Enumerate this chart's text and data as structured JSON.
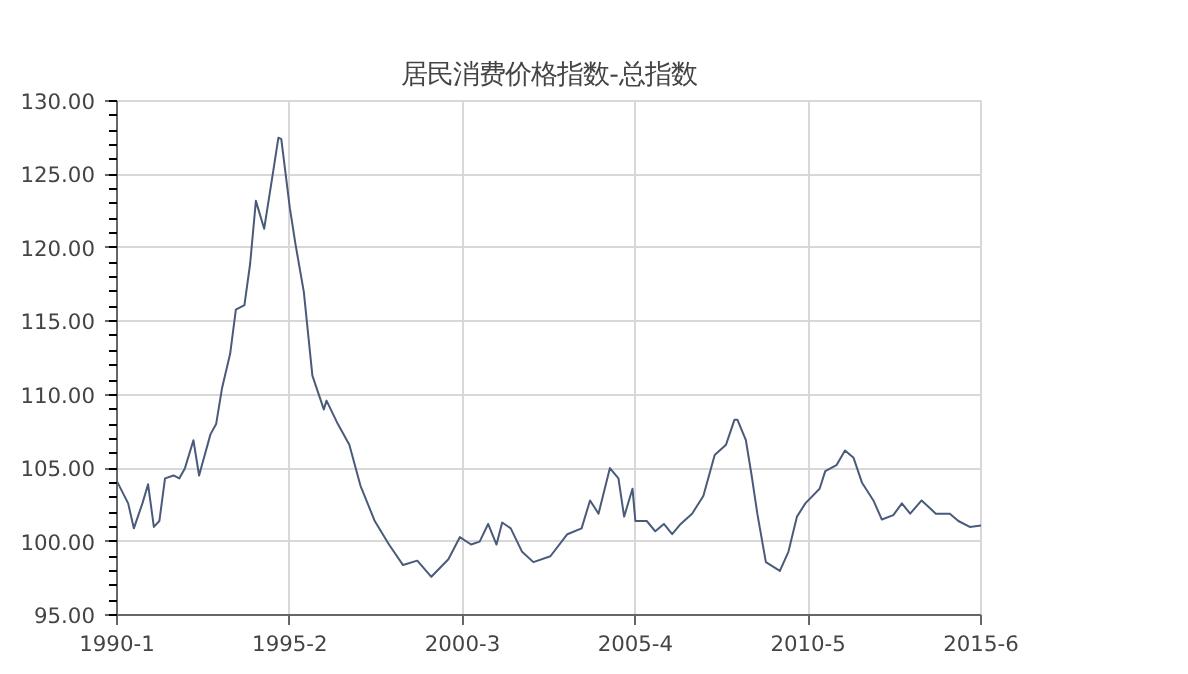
{
  "chart_data": {
    "type": "line",
    "title": "居民消费价格指数-总指数",
    "x": [
      "1990-01",
      "1990-05",
      "1990-07",
      "1990-10",
      "1990-12",
      "1991-02",
      "1991-04",
      "1991-06",
      "1991-09",
      "1991-11",
      "1992-01",
      "1992-04",
      "1992-06",
      "1992-07",
      "1992-10",
      "1992-12",
      "1993-02",
      "1993-05",
      "1993-07",
      "1993-10",
      "1993-12",
      "1994-02",
      "1994-05",
      "1994-08",
      "1994-10",
      "1994-11",
      "1995-02",
      "1995-04",
      "1995-07",
      "1995-10",
      "1996-02",
      "1996-03",
      "1996-07",
      "1996-11",
      "1997-03",
      "1997-08",
      "1998-01",
      "1998-06",
      "1998-11",
      "1999-04",
      "1999-10",
      "2000-02",
      "2000-06",
      "2000-09",
      "2000-12",
      "2001-03",
      "2001-05",
      "2001-08",
      "2001-12",
      "2002-04",
      "2002-10",
      "2003-04",
      "2003-09",
      "2003-12",
      "2004-03",
      "2004-07",
      "2004-10",
      "2004-12",
      "2005-03",
      "2005-04",
      "2005-08",
      "2005-11",
      "2006-02",
      "2006-05",
      "2006-08",
      "2006-12",
      "2007-04",
      "2007-08",
      "2007-12",
      "2008-03",
      "2008-04",
      "2008-07",
      "2008-09",
      "2008-11",
      "2009-02",
      "2009-07",
      "2009-10",
      "2010-01",
      "2010-04",
      "2010-09",
      "2010-11",
      "2011-03",
      "2011-06",
      "2011-09",
      "2011-12",
      "2012-04",
      "2012-07",
      "2012-11",
      "2013-02",
      "2013-05",
      "2013-09",
      "2014-02",
      "2014-07",
      "2014-10",
      "2015-02",
      "2015-06"
    ],
    "series": [
      {
        "color": "#4a5a7a",
        "values": [
          104.1,
          102.6,
          100.9,
          102.6,
          103.9,
          101.0,
          101.4,
          104.3,
          104.5,
          104.3,
          105.0,
          106.9,
          104.5,
          105.2,
          107.3,
          108.0,
          110.4,
          112.8,
          115.8,
          116.1,
          118.9,
          123.2,
          121.3,
          125.0,
          127.5,
          127.4,
          122.7,
          120.3,
          117.0,
          111.3,
          109.0,
          109.6,
          108.0,
          106.6,
          103.8,
          101.4,
          99.8,
          98.4,
          98.7,
          97.6,
          98.8,
          100.3,
          99.8,
          100.0,
          101.2,
          99.8,
          101.3,
          100.9,
          99.3,
          98.6,
          99.0,
          100.5,
          100.9,
          102.8,
          101.9,
          105.0,
          104.3,
          101.7,
          103.6,
          101.4,
          101.4,
          100.7,
          101.2,
          100.5,
          101.2,
          101.9,
          103.1,
          105.9,
          106.6,
          108.3,
          108.3,
          106.9,
          104.5,
          101.9,
          98.6,
          98.0,
          99.3,
          101.7,
          102.6,
          103.6,
          104.8,
          105.2,
          106.2,
          105.7,
          104.0,
          102.8,
          101.5,
          101.8,
          102.6,
          101.9,
          102.8,
          101.9,
          101.9,
          101.4,
          101.0,
          101.1
        ]
      }
    ],
    "xlim": [
      "1990-01",
      "2015-06"
    ],
    "xticks": [
      {
        "value": "1990-01",
        "label": "1990-1"
      },
      {
        "value": "1995-02",
        "label": "1995-2"
      },
      {
        "value": "2000-03",
        "label": "2000-3"
      },
      {
        "value": "2005-04",
        "label": "2005-4"
      },
      {
        "value": "2010-05",
        "label": "2010-5"
      },
      {
        "value": "2015-06",
        "label": "2015-6"
      }
    ],
    "ylim": [
      95,
      130
    ],
    "yticks": [
      {
        "value": 95,
        "label": "95.00"
      },
      {
        "value": 100,
        "label": "100.00"
      },
      {
        "value": 105,
        "label": "105.00"
      },
      {
        "value": 110,
        "label": "110.00"
      },
      {
        "value": 115,
        "label": "115.00"
      },
      {
        "value": 120,
        "label": "120.00"
      },
      {
        "value": 125,
        "label": "125.00"
      },
      {
        "value": 130,
        "label": "130.00"
      }
    ],
    "grid": true,
    "line_style": "solid"
  }
}
